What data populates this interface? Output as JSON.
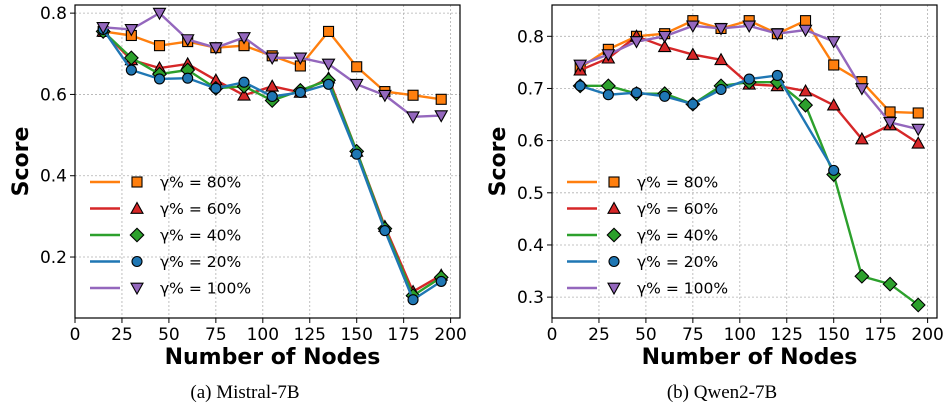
{
  "chart_data": [
    {
      "type": "line",
      "caption": "(a) Mistral-7B",
      "xlabel": "Number of Nodes",
      "ylabel": "Score",
      "xlim": [
        0,
        205
      ],
      "ylim": [
        0.05,
        0.82
      ],
      "xticks": [
        0,
        25,
        50,
        75,
        100,
        125,
        150,
        175,
        200
      ],
      "yticks": [
        0.2,
        0.4,
        0.6,
        0.8
      ],
      "ytick_labels": [
        "0.2",
        "0.4",
        "0.6",
        "0.8"
      ],
      "grid": true,
      "legend_position": "lower-left",
      "x": [
        15,
        30,
        45,
        60,
        75,
        90,
        105,
        120,
        135,
        150,
        165,
        180,
        195
      ],
      "series": [
        {
          "name": "γ% = 80%",
          "color": "#ff7f0e",
          "marker": "square",
          "values": [
            0.755,
            0.745,
            0.72,
            0.73,
            0.715,
            0.72,
            0.695,
            0.67,
            0.755,
            0.668,
            0.607,
            0.598,
            0.588
          ]
        },
        {
          "name": "γ% = 60%",
          "color": "#d62728",
          "marker": "triangle-up",
          "values": [
            0.755,
            0.685,
            0.665,
            0.675,
            0.635,
            0.598,
            0.62,
            0.605,
            0.64,
            0.46,
            0.275,
            0.115,
            0.155
          ]
        },
        {
          "name": "γ% = 40%",
          "color": "#2ca02c",
          "marker": "diamond",
          "values": [
            0.755,
            0.69,
            0.65,
            0.66,
            0.615,
            0.62,
            0.585,
            0.61,
            0.635,
            0.46,
            0.27,
            0.105,
            0.15
          ]
        },
        {
          "name": "γ% = 20%",
          "color": "#1f77b4",
          "marker": "circle",
          "values": [
            0.76,
            0.66,
            0.638,
            0.64,
            0.615,
            0.63,
            0.595,
            0.605,
            0.625,
            0.453,
            0.265,
            0.095,
            0.14
          ]
        },
        {
          "name": "γ% = 100%",
          "color": "#9467bd",
          "marker": "triangle-down",
          "values": [
            0.765,
            0.76,
            0.8,
            0.735,
            0.715,
            0.74,
            0.69,
            0.69,
            0.675,
            0.625,
            0.598,
            0.545,
            0.548
          ]
        }
      ]
    },
    {
      "type": "line",
      "caption": "(b) Qwen2-7B",
      "xlabel": "Number of Nodes",
      "ylabel": "Score",
      "xlim": [
        0,
        205
      ],
      "ylim": [
        0.26,
        0.86
      ],
      "xticks": [
        0,
        25,
        50,
        75,
        100,
        125,
        150,
        175,
        200
      ],
      "yticks": [
        0.3,
        0.4,
        0.5,
        0.6,
        0.7,
        0.8
      ],
      "ytick_labels": [
        "0.3",
        "0.4",
        "0.5",
        "0.6",
        "0.7",
        "0.8"
      ],
      "grid": true,
      "legend_position": "lower-left",
      "x": [
        15,
        30,
        45,
        60,
        75,
        90,
        105,
        120,
        135,
        150,
        165,
        180,
        195
      ],
      "series": [
        {
          "name": "γ% = 80%",
          "color": "#ff7f0e",
          "marker": "square",
          "values": [
            0.74,
            0.775,
            0.8,
            0.805,
            0.83,
            0.815,
            0.83,
            0.805,
            0.83,
            0.745,
            0.713,
            0.655,
            0.653
          ]
        },
        {
          "name": "γ% = 60%",
          "color": "#d62728",
          "marker": "triangle-up",
          "values": [
            0.735,
            0.758,
            0.8,
            0.78,
            0.765,
            0.755,
            0.708,
            0.705,
            0.695,
            0.668,
            0.603,
            0.63,
            0.595
          ]
        },
        {
          "name": "γ% = 40%",
          "color": "#2ca02c",
          "marker": "diamond",
          "values": [
            0.705,
            0.705,
            0.69,
            0.69,
            0.67,
            0.705,
            0.712,
            0.712,
            0.668,
            0.535,
            0.34,
            0.325,
            0.285
          ]
        },
        {
          "name": "γ% = 20%",
          "color": "#1f77b4",
          "marker": "circle",
          "values": [
            0.705,
            0.688,
            0.692,
            0.685,
            0.67,
            0.698,
            0.718,
            0.725,
            null,
            0.543,
            null,
            null,
            null
          ]
        },
        {
          "name": "γ% = 100%",
          "color": "#9467bd",
          "marker": "triangle-down",
          "values": [
            0.745,
            0.765,
            0.79,
            0.8,
            0.82,
            0.815,
            0.82,
            0.805,
            0.812,
            0.79,
            0.7,
            0.635,
            0.622
          ]
        }
      ]
    }
  ]
}
